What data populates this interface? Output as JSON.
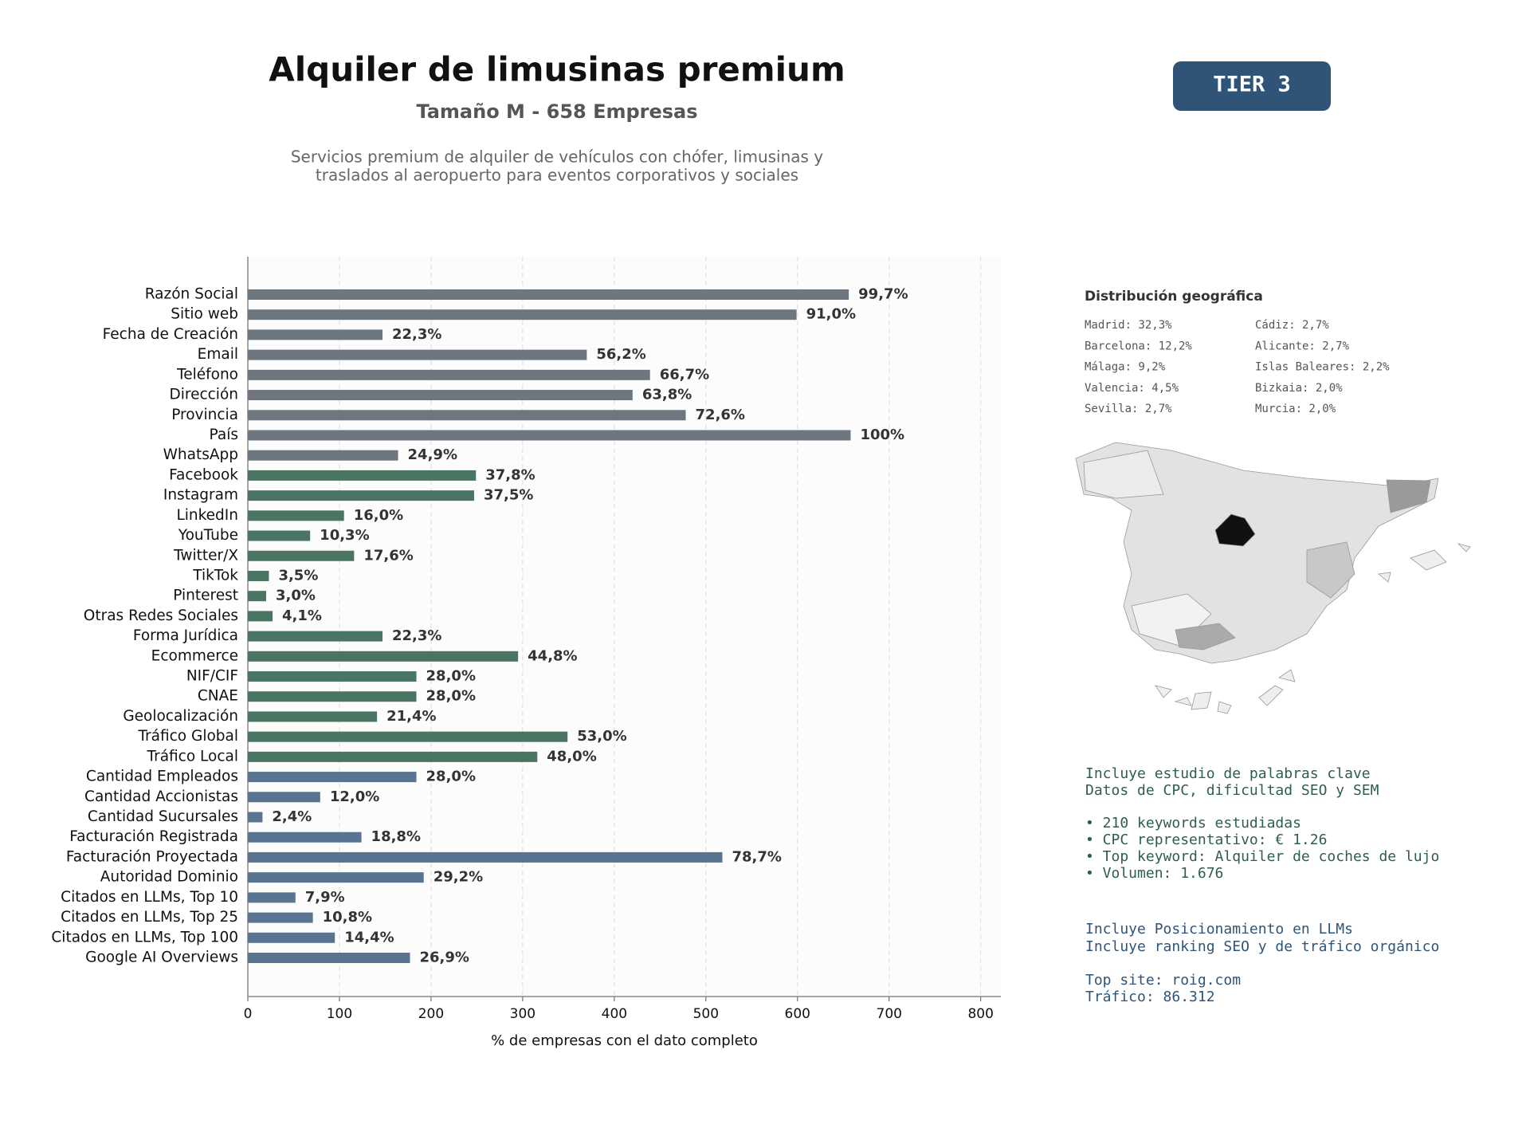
{
  "chart_data": {
    "type": "bar",
    "orientation": "horizontal",
    "title": "Alquiler de limusinas premium",
    "subtitle": "Tamaño M - 658 Empresas",
    "description": [
      "Servicios premium de alquiler de vehículos con chófer, limusinas y",
      "traslados al aeropuerto para eventos corporativos y sociales"
    ],
    "xlabel": "% de empresas con el dato completo",
    "categories": [
      "Razón Social",
      "Sitio web",
      "Fecha de Creación",
      "Email",
      "Teléfono",
      "Dirección",
      "Provincia",
      "País",
      "WhatsApp",
      "Facebook",
      "Instagram",
      "LinkedIn",
      "YouTube",
      "Twitter/X",
      "TikTok",
      "Pinterest",
      "Otras Redes Sociales",
      "Forma Jurídica",
      "Ecommerce",
      "NIF/CIF",
      "CNAE",
      "Geolocalización",
      "Tráfico Global",
      "Tráfico Local",
      "Cantidad Empleados",
      "Cantidad Accionistas",
      "Cantidad Sucursales",
      "Facturación Registrada",
      "Facturación Proyectada",
      "Autoridad Dominio",
      "Citados en LLMs, Top 10",
      "Citados en LLMs, Top 25",
      "Citados en LLMs, Top 100",
      "Google AI Overviews"
    ],
    "values": [
      656,
      599,
      147,
      370,
      439,
      420,
      478,
      658,
      164,
      249,
      247,
      105,
      68,
      116,
      23,
      20,
      27,
      147,
      295,
      184,
      184,
      141,
      349,
      316,
      184,
      79,
      16,
      124,
      518,
      192,
      52,
      71,
      95,
      177
    ],
    "value_labels": [
      "99,7%",
      "91,0%",
      "22,3%",
      "56,2%",
      "66,7%",
      "63,8%",
      "72,6%",
      "100%",
      "24,9%",
      "37,8%",
      "37,5%",
      "16,0%",
      "10,3%",
      "17,6%",
      "3,5%",
      "3,0%",
      "4,1%",
      "22,3%",
      "44,8%",
      "28,0%",
      "28,0%",
      "21,4%",
      "53,0%",
      "48,0%",
      "28,0%",
      "12,0%",
      "2,4%",
      "18,8%",
      "78,7%",
      "29,2%",
      "7,9%",
      "10,8%",
      "14,4%",
      "26,9%"
    ],
    "colors": [
      "#6e7780",
      "#6e7780",
      "#6e7780",
      "#6e7780",
      "#6e7780",
      "#6e7780",
      "#6e7780",
      "#6e7780",
      "#6e7780",
      "#4a7563",
      "#4a7563",
      "#4a7563",
      "#4a7563",
      "#4a7563",
      "#4a7563",
      "#4a7563",
      "#4a7563",
      "#4a7563",
      "#4a7563",
      "#4a7563",
      "#4a7563",
      "#4a7563",
      "#4a7563",
      "#4a7563",
      "#587490",
      "#587490",
      "#587490",
      "#587490",
      "#587490",
      "#587490",
      "#587490",
      "#587490",
      "#587490",
      "#587490"
    ],
    "xlim": [
      0,
      822
    ],
    "xticks": [
      0,
      100,
      200,
      300,
      400,
      500,
      600,
      700,
      800
    ],
    "grid": true
  },
  "badge": "TIER 3",
  "geo": {
    "title": "Distribución geográfica",
    "items": [
      "Madrid: 32,3%",
      "Barcelona: 12,2%",
      "Málaga: 9,2%",
      "Valencia: 4,5%",
      "Sevilla: 2,7%",
      "Cádiz: 2,7%",
      "Alicante: 2,7%",
      "Islas Baleares: 2,2%",
      "Bizkaia: 2,0%",
      "Murcia: 2,0%"
    ]
  },
  "keywords": [
    "Incluye estudio de palabras clave",
    "Datos de CPC, dificultad SEO y SEM",
    "• 210 keywords estudiadas",
    "• CPC representativo: € 1.26",
    "• Top keyword: Alquiler de coches de lujo",
    "• Volumen: 1.676"
  ],
  "extras": [
    "Incluye Posicionamiento en LLMs",
    "Incluye ranking SEO y de tráfico orgánico",
    "Top site: roig.com",
    "Tráfico: 86.312"
  ]
}
